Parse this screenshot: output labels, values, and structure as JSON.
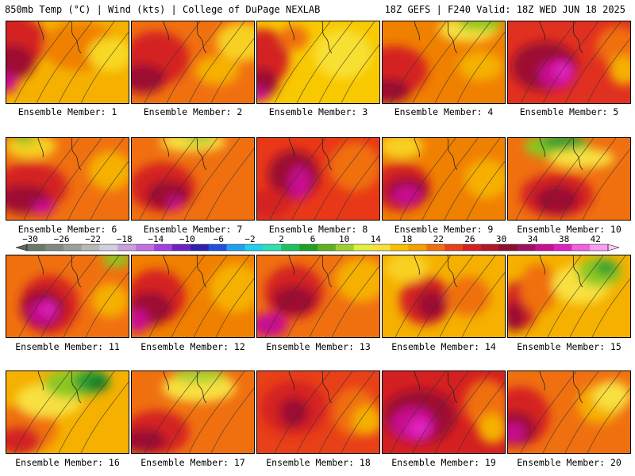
{
  "header": {
    "left": "850mb Temp (°C) | Wind (kts) | College of DuPage NEXLAB",
    "right": "18Z GEFS | F240 Valid: 18Z WED JUN 18 2025"
  },
  "panels": [
    {
      "label": "Ensemble Member: 1",
      "base": "#f5b000",
      "blobs": [
        [
          "#d42020",
          0.0,
          0.25,
          0.55,
          0.6
        ],
        [
          "#9c1030",
          0.05,
          0.5,
          0.3,
          0.35
        ],
        [
          "#c81090",
          0.0,
          0.75,
          0.15,
          0.2
        ],
        [
          "#f08000",
          0.6,
          0.3,
          0.5,
          0.5
        ],
        [
          "#f8d820",
          0.85,
          0.4,
          0.3,
          0.35
        ]
      ]
    },
    {
      "label": "Ensemble Member: 2",
      "base": "#f07010",
      "blobs": [
        [
          "#d42020",
          0.2,
          0.45,
          0.45,
          0.55
        ],
        [
          "#9c1030",
          0.1,
          0.7,
          0.3,
          0.3
        ],
        [
          "#f8d020",
          0.9,
          0.25,
          0.35,
          0.4
        ],
        [
          "#f5b000",
          0.7,
          0.6,
          0.3,
          0.3
        ]
      ]
    },
    {
      "label": "Ensemble Member: 3",
      "base": "#f8c800",
      "blobs": [
        [
          "#d42020",
          0.05,
          0.45,
          0.35,
          0.6
        ],
        [
          "#9c1030",
          0.05,
          0.75,
          0.2,
          0.3
        ],
        [
          "#c81090",
          0.02,
          0.9,
          0.12,
          0.15
        ],
        [
          "#f8e030",
          0.7,
          0.4,
          0.4,
          0.5
        ],
        [
          "#f07010",
          0.3,
          0.2,
          0.2,
          0.25
        ]
      ]
    },
    {
      "label": "Ensemble Member: 4",
      "base": "#f08000",
      "blobs": [
        [
          "#d42020",
          0.1,
          0.6,
          0.45,
          0.5
        ],
        [
          "#9c1030",
          0.05,
          0.85,
          0.3,
          0.25
        ],
        [
          "#f8e040",
          0.7,
          0.1,
          0.4,
          0.25
        ],
        [
          "#8cc820",
          0.8,
          0.02,
          0.3,
          0.15
        ],
        [
          "#f5b000",
          0.8,
          0.55,
          0.3,
          0.3
        ]
      ]
    },
    {
      "label": "Ensemble Member: 5",
      "base": "#e03020",
      "blobs": [
        [
          "#9c1030",
          0.3,
          0.55,
          0.45,
          0.5
        ],
        [
          "#c81090",
          0.4,
          0.65,
          0.25,
          0.3
        ],
        [
          "#e020c0",
          0.45,
          0.6,
          0.12,
          0.2
        ],
        [
          "#f07010",
          0.9,
          0.3,
          0.3,
          0.4
        ],
        [
          "#f5b000",
          0.95,
          0.6,
          0.2,
          0.3
        ]
      ]
    },
    {
      "label": "Ensemble Member: 6",
      "base": "#f07010",
      "blobs": [
        [
          "#d42020",
          0.2,
          0.6,
          0.5,
          0.5
        ],
        [
          "#9c1030",
          0.15,
          0.75,
          0.35,
          0.3
        ],
        [
          "#c81090",
          0.3,
          0.85,
          0.15,
          0.15
        ],
        [
          "#f8d020",
          0.2,
          0.1,
          0.35,
          0.25
        ],
        [
          "#8cc820",
          0.15,
          0.02,
          0.15,
          0.1
        ],
        [
          "#f5b000",
          0.85,
          0.4,
          0.3,
          0.4
        ]
      ]
    },
    {
      "label": "Ensemble Member: 7",
      "base": "#f07010",
      "blobs": [
        [
          "#d42020",
          0.25,
          0.6,
          0.45,
          0.5
        ],
        [
          "#9c1030",
          0.3,
          0.7,
          0.3,
          0.3
        ],
        [
          "#c81090",
          0.35,
          0.8,
          0.1,
          0.15
        ],
        [
          "#f8e040",
          0.5,
          0.05,
          0.45,
          0.2
        ],
        [
          "#a8d030",
          0.55,
          0.02,
          0.2,
          0.1
        ]
      ]
    },
    {
      "label": "Ensemble Member: 8",
      "base": "#e83818",
      "blobs": [
        [
          "#9c1030",
          0.3,
          0.45,
          0.35,
          0.5
        ],
        [
          "#c81090",
          0.35,
          0.55,
          0.15,
          0.35
        ],
        [
          "#f07010",
          0.8,
          0.35,
          0.35,
          0.5
        ],
        [
          "#d42020",
          0.1,
          0.8,
          0.3,
          0.3
        ]
      ]
    },
    {
      "label": "Ensemble Member: 9",
      "base": "#f08000",
      "blobs": [
        [
          "#d42020",
          0.15,
          0.6,
          0.4,
          0.5
        ],
        [
          "#9c1030",
          0.2,
          0.65,
          0.3,
          0.3
        ],
        [
          "#c81090",
          0.2,
          0.7,
          0.2,
          0.2
        ],
        [
          "#f8d020",
          0.15,
          0.1,
          0.3,
          0.25
        ],
        [
          "#f5b000",
          0.85,
          0.5,
          0.3,
          0.4
        ]
      ]
    },
    {
      "label": "Ensemble Member: 10",
      "base": "#f07010",
      "blobs": [
        [
          "#d42020",
          0.4,
          0.7,
          0.5,
          0.45
        ],
        [
          "#9c1030",
          0.4,
          0.75,
          0.3,
          0.3
        ],
        [
          "#8cc820",
          0.4,
          0.1,
          0.45,
          0.25
        ],
        [
          "#2e9e30",
          0.45,
          0.05,
          0.3,
          0.15
        ],
        [
          "#f8e040",
          0.6,
          0.25,
          0.45,
          0.2
        ]
      ]
    },
    {
      "label": "Ensemble Member: 11",
      "base": "#f07010",
      "blobs": [
        [
          "#d42020",
          0.35,
          0.6,
          0.4,
          0.6
        ],
        [
          "#9c1030",
          0.3,
          0.65,
          0.3,
          0.4
        ],
        [
          "#c81090",
          0.3,
          0.7,
          0.2,
          0.25
        ],
        [
          "#e020c0",
          0.35,
          0.65,
          0.1,
          0.15
        ],
        [
          "#8cc820",
          0.9,
          0.05,
          0.2,
          0.15
        ],
        [
          "#f5b000",
          0.85,
          0.55,
          0.25,
          0.35
        ]
      ]
    },
    {
      "label": "Ensemble Member: 12",
      "base": "#f08000",
      "blobs": [
        [
          "#d42020",
          0.2,
          0.5,
          0.4,
          0.55
        ],
        [
          "#9c1030",
          0.15,
          0.65,
          0.3,
          0.35
        ],
        [
          "#c81090",
          0.05,
          0.8,
          0.15,
          0.25
        ],
        [
          "#f5b000",
          0.85,
          0.4,
          0.35,
          0.5
        ]
      ]
    },
    {
      "label": "Ensemble Member: 13",
      "base": "#f07010",
      "blobs": [
        [
          "#d42020",
          0.3,
          0.45,
          0.4,
          0.55
        ],
        [
          "#9c1030",
          0.3,
          0.55,
          0.3,
          0.3
        ],
        [
          "#c81090",
          0.1,
          0.85,
          0.25,
          0.25
        ],
        [
          "#f5b000",
          0.85,
          0.3,
          0.35,
          0.45
        ]
      ]
    },
    {
      "label": "Ensemble Member: 14",
      "base": "#f5b000",
      "blobs": [
        [
          "#d42020",
          0.35,
          0.55,
          0.35,
          0.5
        ],
        [
          "#9c1030",
          0.4,
          0.6,
          0.2,
          0.3
        ],
        [
          "#f8d020",
          0.2,
          0.15,
          0.3,
          0.3
        ],
        [
          "#f07010",
          0.7,
          0.5,
          0.3,
          0.4
        ]
      ]
    },
    {
      "label": "Ensemble Member: 15",
      "base": "#f5b000",
      "blobs": [
        [
          "#d42020",
          0.1,
          0.6,
          0.25,
          0.5
        ],
        [
          "#9c1030",
          0.05,
          0.75,
          0.15,
          0.3
        ],
        [
          "#f07010",
          0.25,
          0.4,
          0.25,
          0.5
        ],
        [
          "#f8e040",
          0.6,
          0.35,
          0.4,
          0.4
        ],
        [
          "#8cc820",
          0.75,
          0.2,
          0.3,
          0.3
        ],
        [
          "#2e9e30",
          0.8,
          0.15,
          0.15,
          0.15
        ]
      ]
    },
    {
      "label": "Ensemble Member: 16",
      "base": "#f5b000",
      "blobs": [
        [
          "#f07010",
          0.15,
          0.7,
          0.45,
          0.5
        ],
        [
          "#d42020",
          0.1,
          0.85,
          0.3,
          0.3
        ],
        [
          "#f8e040",
          0.35,
          0.35,
          0.45,
          0.35
        ],
        [
          "#8cc820",
          0.55,
          0.15,
          0.4,
          0.3
        ],
        [
          "#2e9e30",
          0.7,
          0.12,
          0.25,
          0.25
        ],
        [
          "#0a6e2a",
          0.75,
          0.15,
          0.12,
          0.12
        ]
      ]
    },
    {
      "label": "Ensemble Member: 17",
      "base": "#f07010",
      "blobs": [
        [
          "#d42020",
          0.2,
          0.75,
          0.45,
          0.45
        ],
        [
          "#9c1030",
          0.1,
          0.85,
          0.3,
          0.25
        ],
        [
          "#f8e040",
          0.55,
          0.2,
          0.5,
          0.3
        ],
        [
          "#a8d030",
          0.55,
          0.05,
          0.35,
          0.15
        ]
      ]
    },
    {
      "label": "Ensemble Member: 18",
      "base": "#e84018",
      "blobs": [
        [
          "#d42020",
          0.3,
          0.45,
          0.45,
          0.55
        ],
        [
          "#9c1030",
          0.3,
          0.5,
          0.2,
          0.3
        ],
        [
          "#f07010",
          0.8,
          0.5,
          0.3,
          0.5
        ],
        [
          "#f5b000",
          0.9,
          0.6,
          0.2,
          0.3
        ]
      ]
    },
    {
      "label": "Ensemble Member: 19",
      "base": "#d42020",
      "blobs": [
        [
          "#9c1030",
          0.3,
          0.55,
          0.5,
          0.55
        ],
        [
          "#c81090",
          0.25,
          0.65,
          0.3,
          0.35
        ],
        [
          "#e020c0",
          0.3,
          0.7,
          0.15,
          0.2
        ],
        [
          "#f07010",
          0.85,
          0.4,
          0.3,
          0.5
        ],
        [
          "#f5b000",
          0.9,
          0.7,
          0.2,
          0.3
        ]
      ]
    },
    {
      "label": "Ensemble Member: 20",
      "base": "#f07010",
      "blobs": [
        [
          "#d42020",
          0.1,
          0.55,
          0.4,
          0.6
        ],
        [
          "#9c1030",
          0.05,
          0.7,
          0.3,
          0.35
        ],
        [
          "#c81090",
          0.05,
          0.75,
          0.15,
          0.2
        ],
        [
          "#f5b000",
          0.75,
          0.4,
          0.3,
          0.4
        ],
        [
          "#f8e040",
          0.85,
          0.3,
          0.25,
          0.3
        ]
      ]
    }
  ],
  "color_scale": {
    "labels": [
      "−30",
      "−26",
      "−22",
      "−18",
      "−14",
      "−10",
      "−6",
      "−2",
      "2",
      "6",
      "10",
      "14",
      "18",
      "22",
      "26",
      "30",
      "34",
      "38",
      "42"
    ],
    "colors": [
      "#6a7a6a",
      "#808a80",
      "#9aa09a",
      "#b8b8b8",
      "#d0d0e0",
      "#c8a0e0",
      "#c070e0",
      "#a040e0",
      "#7020c0",
      "#3020b0",
      "#2050e0",
      "#20a0f0",
      "#20d0f0",
      "#30e0b0",
      "#20c060",
      "#20a020",
      "#60b020",
      "#a0d030",
      "#e0f040",
      "#f8e040",
      "#f8c000",
      "#f5a000",
      "#f07010",
      "#e84018",
      "#d42020",
      "#b01828",
      "#8c1030",
      "#a01060",
      "#c81090",
      "#e020c0",
      "#f060e0",
      "#f8a0f0"
    ]
  }
}
